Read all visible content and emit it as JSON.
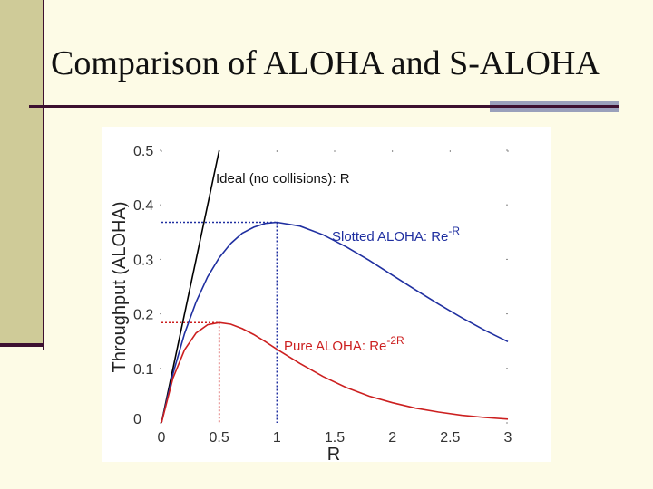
{
  "slide": {
    "title": "Comparison of ALOHA and S-ALOHA"
  },
  "colors": {
    "background": "#fdfbe6",
    "sidebar": "#cfcb98",
    "accent_dark": "#3d1030",
    "accent_light": "#9aa0bb",
    "ideal": "#000000",
    "slotted": "#1f2fa0",
    "pure": "#cc1f1f"
  },
  "chart_data": {
    "type": "line",
    "title": "",
    "xlabel": "R",
    "ylabel": "Throughput (ALOHA)",
    "xlim": [
      0,
      3
    ],
    "ylim": [
      0,
      0.5
    ],
    "x_ticks": [
      "0",
      "0.5",
      "1",
      "1.5",
      "2",
      "2.5",
      "3"
    ],
    "y_ticks": [
      "0",
      "0.1",
      "0.2",
      "0.3",
      "0.4",
      "0.5"
    ],
    "grid": false,
    "series": [
      {
        "name": "Ideal (no collisions): R",
        "label_text": "Ideal (no collisions): R",
        "color": "#000000",
        "x": [
          0,
          0.5
        ],
        "y": [
          0,
          0.5
        ]
      },
      {
        "name": "Slotted ALOHA: Re^-R",
        "label_text": "Slotted ALOHA: Re",
        "label_sup": "-R",
        "color": "#1f2fa0",
        "x": [
          0,
          0.1,
          0.2,
          0.3,
          0.4,
          0.5,
          0.6,
          0.7,
          0.8,
          0.9,
          1.0,
          1.2,
          1.4,
          1.6,
          1.8,
          2.0,
          2.2,
          2.4,
          2.6,
          2.8,
          3.0
        ],
        "y": [
          0,
          0.09,
          0.164,
          0.222,
          0.268,
          0.303,
          0.329,
          0.348,
          0.359,
          0.366,
          0.368,
          0.361,
          0.345,
          0.323,
          0.298,
          0.271,
          0.244,
          0.218,
          0.193,
          0.17,
          0.149
        ],
        "peak": {
          "x": 1,
          "y": 0.368
        }
      },
      {
        "name": "Pure ALOHA: Re^-2R",
        "label_text": "Pure ALOHA: Re",
        "label_sup": "-2R",
        "color": "#cc1f1f",
        "x": [
          0,
          0.1,
          0.2,
          0.3,
          0.4,
          0.5,
          0.6,
          0.7,
          0.8,
          0.9,
          1.0,
          1.2,
          1.4,
          1.6,
          1.8,
          2.0,
          2.2,
          2.4,
          2.6,
          2.8,
          3.0
        ],
        "y": [
          0,
          0.082,
          0.134,
          0.165,
          0.18,
          0.184,
          0.181,
          0.173,
          0.162,
          0.149,
          0.135,
          0.109,
          0.085,
          0.065,
          0.049,
          0.037,
          0.027,
          0.02,
          0.014,
          0.01,
          0.007
        ],
        "peak": {
          "x": 0.5,
          "y": 0.184
        }
      }
    ]
  }
}
